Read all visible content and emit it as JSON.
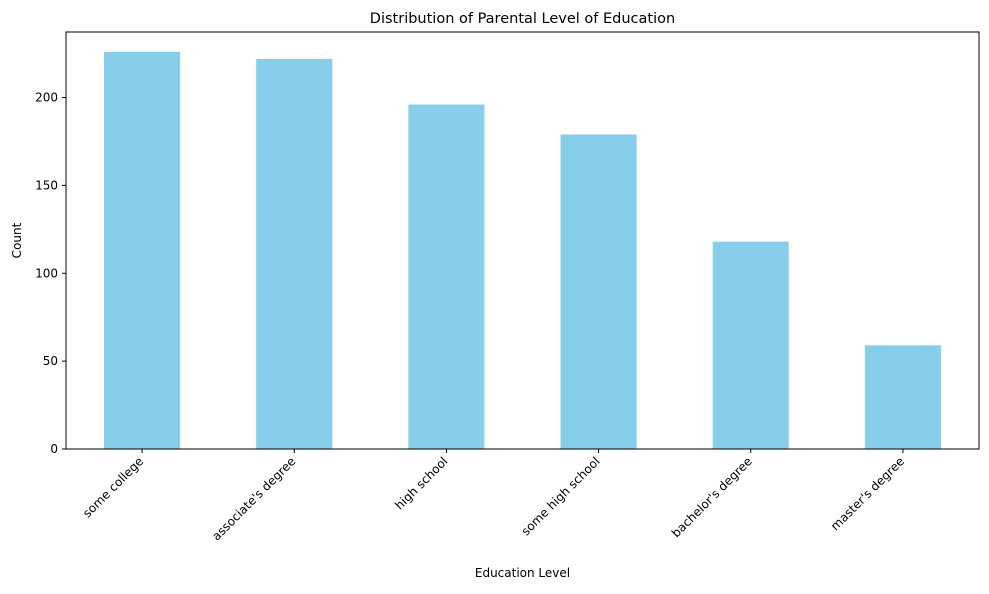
{
  "chart_data": {
    "type": "bar",
    "title": "Distribution of Parental Level of Education",
    "xlabel": "Education Level",
    "ylabel": "Count",
    "categories": [
      "some college",
      "associate's degree",
      "high school",
      "some high school",
      "bachelor's degree",
      "master's degree"
    ],
    "values": [
      226,
      222,
      196,
      179,
      118,
      59
    ],
    "ylim": [
      0,
      237.3
    ],
    "yticks": [
      0,
      50,
      100,
      150,
      200
    ],
    "bar_color": "#87ceeb",
    "grid": false,
    "legend": "none"
  }
}
